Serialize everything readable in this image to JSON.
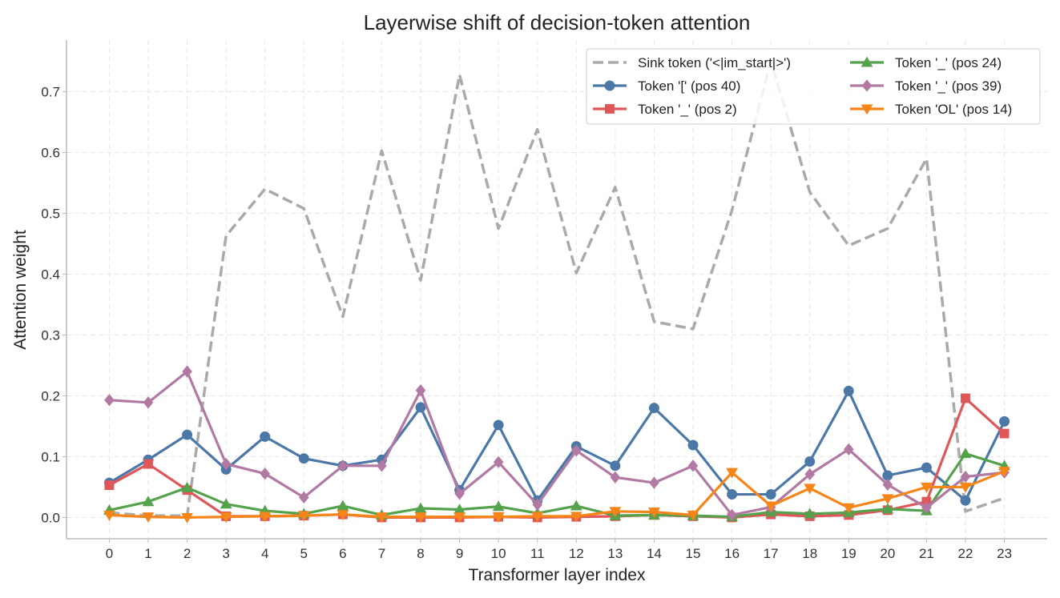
{
  "chart_data": {
    "type": "line",
    "title": "Layerwise shift of decision-token attention",
    "xlabel": "Transformer layer index",
    "ylabel": "Attention weight",
    "x": [
      0,
      1,
      2,
      3,
      4,
      5,
      6,
      7,
      8,
      9,
      10,
      11,
      12,
      13,
      14,
      15,
      16,
      17,
      18,
      19,
      20,
      21,
      22,
      23
    ],
    "xlim": [
      -1.1,
      24.1
    ],
    "ylim": [
      -0.035,
      0.785
    ],
    "yticks": [
      0.0,
      0.1,
      0.2,
      0.3,
      0.4,
      0.5,
      0.6,
      0.7
    ],
    "ytick_labels": [
      "0.0",
      "0.1",
      "0.2",
      "0.3",
      "0.4",
      "0.5",
      "0.6",
      "0.7"
    ],
    "grid": true,
    "legend_position": "top-right",
    "legend_columns": 2,
    "series": [
      {
        "name": "Sink token ('<|im_start|>')",
        "color": "#aaaaaa",
        "marker": "none",
        "dashed": true,
        "values": [
          0.008,
          0.003,
          0.003,
          0.463,
          0.54,
          0.508,
          0.33,
          0.603,
          0.39,
          0.728,
          0.475,
          0.638,
          0.402,
          0.543,
          0.322,
          0.31,
          0.505,
          0.75,
          0.535,
          0.447,
          0.475,
          0.59,
          0.01,
          0.032
        ]
      },
      {
        "name": "Token '[' (pos 40)",
        "color": "#4c78a8",
        "marker": "circle",
        "dashed": false,
        "values": [
          0.057,
          0.095,
          0.136,
          0.079,
          0.133,
          0.097,
          0.085,
          0.095,
          0.181,
          0.045,
          0.152,
          0.028,
          0.117,
          0.085,
          0.18,
          0.119,
          0.038,
          0.038,
          0.092,
          0.208,
          0.069,
          0.082,
          0.028,
          0.158
        ]
      },
      {
        "name": "Token '_' (pos 2)",
        "color": "#e05759",
        "marker": "square",
        "dashed": false,
        "values": [
          0.053,
          0.088,
          0.045,
          0.002,
          0.002,
          0.003,
          0.005,
          0.0,
          0.0,
          0.0,
          0.001,
          0.0,
          0.001,
          0.002,
          0.004,
          0.002,
          0.0,
          0.005,
          0.002,
          0.004,
          0.012,
          0.026,
          0.196,
          0.138
        ]
      },
      {
        "name": "Token '_' (pos 24)",
        "color": "#54a24b",
        "marker": "triangle-up",
        "dashed": false,
        "values": [
          0.012,
          0.026,
          0.049,
          0.022,
          0.011,
          0.006,
          0.019,
          0.004,
          0.015,
          0.013,
          0.018,
          0.007,
          0.019,
          0.003,
          0.004,
          0.003,
          0.001,
          0.009,
          0.006,
          0.008,
          0.014,
          0.011,
          0.105,
          0.085
        ]
      },
      {
        "name": "Token '_' (pos 39)",
        "color": "#b279a2",
        "marker": "diamond",
        "dashed": false,
        "values": [
          0.193,
          0.189,
          0.24,
          0.088,
          0.072,
          0.033,
          0.085,
          0.085,
          0.209,
          0.039,
          0.091,
          0.021,
          0.11,
          0.066,
          0.057,
          0.085,
          0.004,
          0.017,
          0.071,
          0.112,
          0.054,
          0.016,
          0.067,
          0.074
        ]
      },
      {
        "name": "Token 'OL' (pos 14)",
        "color": "#f58518",
        "marker": "triangle-down",
        "dashed": false,
        "values": [
          0.004,
          0.001,
          0.0,
          0.001,
          0.002,
          0.003,
          0.005,
          0.001,
          0.001,
          0.001,
          0.001,
          0.002,
          0.002,
          0.01,
          0.009,
          0.004,
          0.074,
          0.019,
          0.048,
          0.016,
          0.031,
          0.05,
          0.05,
          0.076
        ]
      }
    ]
  }
}
